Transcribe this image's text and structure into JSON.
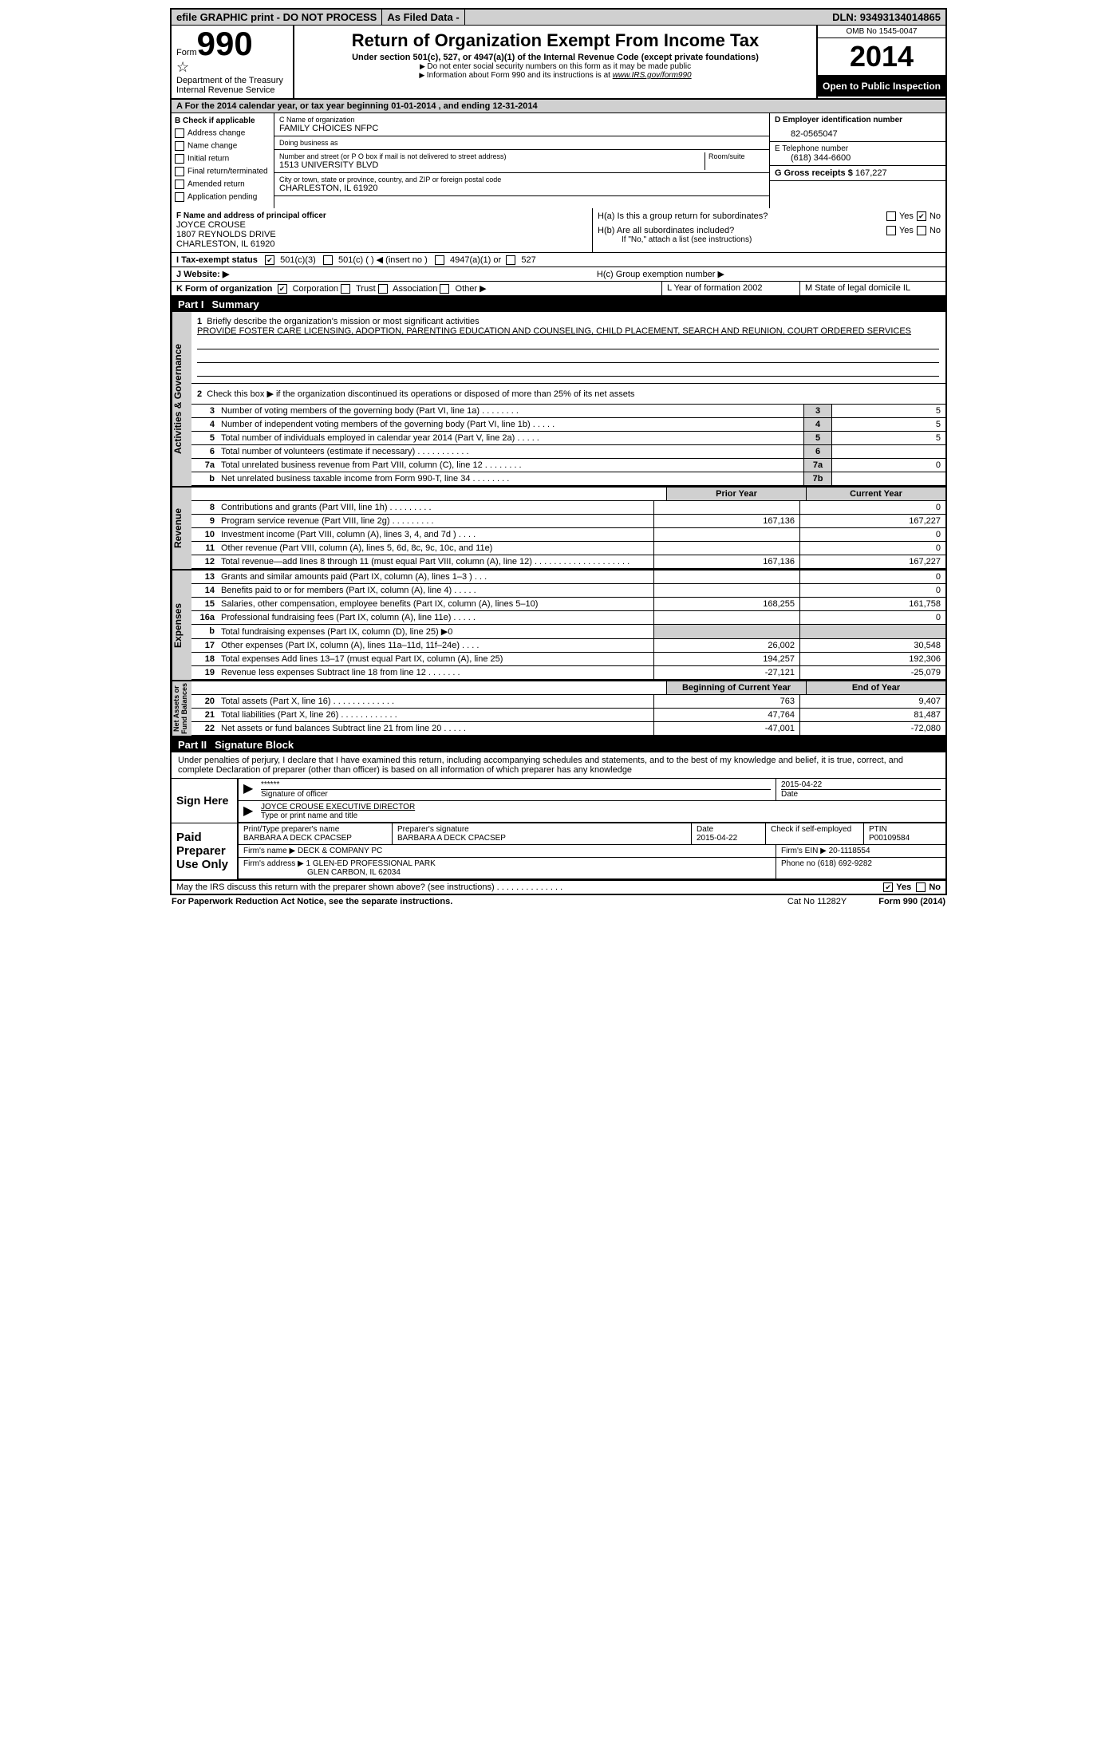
{
  "topbar": {
    "efile": "efile GRAPHIC print - DO NOT PROCESS",
    "asfiled": "As Filed Data -",
    "dln_label": "DLN:",
    "dln": "93493134014865"
  },
  "header": {
    "form_prefix": "Form",
    "form_number": "990",
    "dept": "Department of the Treasury",
    "irs": "Internal Revenue Service",
    "title": "Return of Organization Exempt From Income Tax",
    "subtitle": "Under section 501(c), 527, or 4947(a)(1) of the Internal Revenue Code (except private foundations)",
    "note1": "Do not enter social security numbers on this form as it may be made public",
    "note2_pre": "Information about Form 990 and its instructions is at ",
    "note2_link": "www.IRS.gov/form990",
    "omb": "OMB No 1545-0047",
    "year": "2014",
    "open": "Open to Public Inspection"
  },
  "rowA": {
    "text": "A For the 2014 calendar year, or tax year beginning 01-01-2014    , and ending 12-31-2014"
  },
  "colB": {
    "title": "B  Check if applicable",
    "items": [
      "Address change",
      "Name change",
      "Initial return",
      "Final return/terminated",
      "Amended return",
      "Application pending"
    ]
  },
  "colC": {
    "name_label": "C Name of organization",
    "name": "FAMILY CHOICES NFPC",
    "dba_label": "Doing business as",
    "dba": "",
    "street_label": "Number and street (or P O  box if mail is not delivered to street address)",
    "room_label": "Room/suite",
    "street": "1513 UNIVERSITY BLVD",
    "city_label": "City or town, state or province, country, and ZIP or foreign postal code",
    "city": "CHARLESTON, IL  61920"
  },
  "colD": {
    "ein_label": "D Employer identification number",
    "ein": "82-0565047",
    "tel_label": "E Telephone number",
    "tel": "(618) 344-6600",
    "gross_label": "G Gross receipts $",
    "gross": "167,227"
  },
  "principal": {
    "label": "F  Name and address of principal officer",
    "name": "JOYCE CROUSE",
    "street": "1807 REYNOLDS DRIVE",
    "city": "CHARLESTON, IL  61920"
  },
  "sectionH": {
    "ha": "H(a)  Is this a group return for subordinates?",
    "hb": "H(b)  Are all subordinates included?",
    "hb_note": "If \"No,\" attach a list  (see instructions)",
    "hc": "H(c)   Group exemption number ▶",
    "yes": "Yes",
    "no": "No"
  },
  "taxStatus": {
    "i_label": "I    Tax-exempt status",
    "opt1": "501(c)(3)",
    "opt2": "501(c) (   ) ◀ (insert no )",
    "opt3": "4947(a)(1) or",
    "opt4": "527"
  },
  "website": {
    "label": "J   Website: ▶"
  },
  "kRow": {
    "k": "K Form of organization",
    "corp": "Corporation",
    "trust": "Trust",
    "assoc": "Association",
    "other": "Other ▶",
    "l": "L Year of formation  2002",
    "m": "M State of legal domicile  IL"
  },
  "partI": {
    "header": "Part I",
    "title": "Summary",
    "side1": "Activities & Governance",
    "side2": "Revenue",
    "side3": "Expenses",
    "side4": "Net Assets or Fund Balances",
    "mission_label": "Briefly describe the organization's mission or most significant activities",
    "mission": "PROVIDE FOSTER CARE LICENSING, ADOPTION, PARENTING EDUCATION AND COUNSELING, CHILD PLACEMENT, SEARCH AND REUNION, COURT ORDERED SERVICES",
    "line2": "Check this box ▶     if the organization discontinued its operations or disposed of more than 25% of its net assets",
    "lines": [
      {
        "n": "3",
        "d": "Number of voting members of the governing body (Part VI, line 1a)  .  .  .  .  .  .  .  .",
        "b": "3",
        "v": "5"
      },
      {
        "n": "4",
        "d": "Number of independent voting members of the governing body (Part VI, line 1b)  .  .  .  .  .",
        "b": "4",
        "v": "5"
      },
      {
        "n": "5",
        "d": "Total number of individuals employed in calendar year 2014 (Part V, line 2a)  .  .  .  .  .",
        "b": "5",
        "v": "5"
      },
      {
        "n": "6",
        "d": "Total number of volunteers (estimate if necessary)  .  .  .  .  .  .  .  .  .  .  .",
        "b": "6",
        "v": ""
      },
      {
        "n": "7a",
        "d": "Total unrelated business revenue from Part VIII, column (C), line 12  .  .  .  .  .  .  .  .",
        "b": "7a",
        "v": "0"
      },
      {
        "n": "b",
        "d": "Net unrelated business taxable income from Form 990-T, line 34  .  .  .  .  .  .  .  .",
        "b": "7b",
        "v": ""
      }
    ],
    "prior_year": "Prior Year",
    "current_year": "Current Year",
    "rev_rows": [
      {
        "n": "8",
        "d": "Contributions and grants (Part VIII, line 1h)  .  .  .  .  .  .  .  .  .",
        "p": "",
        "c": "0"
      },
      {
        "n": "9",
        "d": "Program service revenue (Part VIII, line 2g)  .  .  .  .  .  .  .  .  .",
        "p": "167,136",
        "c": "167,227"
      },
      {
        "n": "10",
        "d": "Investment income (Part VIII, column (A), lines 3, 4, and 7d )  .  .  .  .",
        "p": "",
        "c": "0"
      },
      {
        "n": "11",
        "d": "Other revenue (Part VIII, column (A), lines 5, 6d, 8c, 9c, 10c, and 11e)",
        "p": "",
        "c": "0"
      },
      {
        "n": "12",
        "d": "Total revenue—add lines 8 through 11 (must equal Part VIII, column (A), line 12)  .  .  .  .  .  .  .  .  .  .  .  .  .  .  .  .  .  .  .  .",
        "p": "167,136",
        "c": "167,227"
      }
    ],
    "exp_rows": [
      {
        "n": "13",
        "d": "Grants and similar amounts paid (Part IX, column (A), lines 1–3 )  .  .  .",
        "p": "",
        "c": "0"
      },
      {
        "n": "14",
        "d": "Benefits paid to or for members (Part IX, column (A), line 4)  .  .  .  .  .",
        "p": "",
        "c": "0"
      },
      {
        "n": "15",
        "d": "Salaries, other compensation, employee benefits (Part IX, column (A), lines 5–10)",
        "p": "168,255",
        "c": "161,758"
      },
      {
        "n": "16a",
        "d": "Professional fundraising fees (Part IX, column (A), line 11e)  .  .  .  .  .",
        "p": "",
        "c": "0"
      },
      {
        "n": "b",
        "d": "Total fundraising expenses (Part IX, column (D), line 25) ▶0",
        "p": "__BLANK__",
        "c": "__BLANK__"
      },
      {
        "n": "17",
        "d": "Other expenses (Part IX, column (A), lines 11a–11d, 11f–24e)  .  .  .  .",
        "p": "26,002",
        "c": "30,548"
      },
      {
        "n": "18",
        "d": "Total expenses  Add lines 13–17 (must equal Part IX, column (A), line 25)",
        "p": "194,257",
        "c": "192,306"
      },
      {
        "n": "19",
        "d": "Revenue less expenses  Subtract line 18 from line 12  .  .  .  .  .  .  .",
        "p": "-27,121",
        "c": "-25,079"
      }
    ],
    "begin_year": "Beginning of Current Year",
    "end_year": "End of Year",
    "net_rows": [
      {
        "n": "20",
        "d": "Total assets (Part X, line 16)  .  .  .  .  .  .  .  .  .  .  .  .  .",
        "p": "763",
        "c": "9,407"
      },
      {
        "n": "21",
        "d": "Total liabilities (Part X, line 26)  .  .  .  .  .  .  .  .  .  .  .  .",
        "p": "47,764",
        "c": "81,487"
      },
      {
        "n": "22",
        "d": "Net assets or fund balances  Subtract line 21 from line 20  .  .  .  .  .",
        "p": "-47,001",
        "c": "-72,080"
      }
    ]
  },
  "partII": {
    "header": "Part II",
    "title": "Signature Block",
    "declare": "Under penalties of perjury, I declare that I have examined this return, including accompanying schedules and statements, and to the best of my knowledge and belief, it is true, correct, and complete  Declaration of preparer (other than officer) is based on all information of which preparer has any knowledge",
    "sign_here": "Sign Here",
    "sig_stars": "******",
    "sig_date": "2015-04-22",
    "sig_officer_label": "Signature of officer",
    "date_label": "Date",
    "officer_name": "JOYCE CROUSE EXECUTIVE DIRECTOR",
    "type_print_label": "Type or print name and title",
    "paid_label": "Paid Preparer Use Only",
    "prep_name_label": "Print/Type preparer's name",
    "prep_name": "BARBARA A DECK CPACSEP",
    "prep_sig_label": "Preparer's signature",
    "prep_sig": "BARBARA A DECK CPACSEP",
    "prep_date_label": "Date",
    "prep_date": "2015-04-22",
    "self_emp": "Check      if self-employed",
    "ptin_label": "PTIN",
    "ptin": "P00109584",
    "firm_name_label": "Firm's name    ▶",
    "firm_name": "DECK & COMPANY PC",
    "firm_ein_label": "Firm's EIN ▶",
    "firm_ein": "20-1118554",
    "firm_addr_label": "Firm's address ▶",
    "firm_addr1": "1 GLEN-ED PROFESSIONAL PARK",
    "firm_addr2": "GLEN CARBON, IL  62034",
    "phone_label": "Phone no",
    "phone": "(618) 692-9282",
    "discuss": "May the IRS discuss this return with the preparer shown above? (see instructions)  .  .  .  .  .  .  .  .  .  .  .  .  .  .",
    "yes": "Yes",
    "no": "No"
  },
  "footer": {
    "pra": "For Paperwork Reduction Act Notice, see the separate instructions.",
    "cat": "Cat No 11282Y",
    "form": "Form 990 (2014)"
  }
}
